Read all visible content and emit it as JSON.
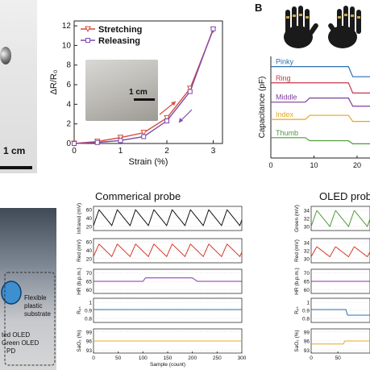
{
  "panel_b_label": "B",
  "left_scale_label": "1 cm",
  "inset_scale_label": "1 cm",
  "substrate_label": "Flexible\nplastic\nsubstrate",
  "oled_label_1": "ted OLED",
  "oled_label_2": "Green OLED",
  "oled_label_3": "PD",
  "chart_data": [
    {
      "type": "line",
      "xlabel": "Strain (%)",
      "ylabel": "ΔR/R₀",
      "xlim": [
        0,
        3.2
      ],
      "ylim": [
        0,
        12.5
      ],
      "xticks": [
        "0",
        "1",
        "2",
        "3"
      ],
      "yticks": [
        "0",
        "2",
        "4",
        "6",
        "8",
        "10",
        "12"
      ],
      "x": [
        0,
        0.5,
        1,
        1.5,
        2,
        2.5,
        3
      ],
      "series": [
        {
          "name": "Stretching",
          "color": "#d64c3c",
          "marker": "triangle-down",
          "values": [
            0,
            0.2,
            0.6,
            1.1,
            2.6,
            5.6,
            11.6
          ]
        },
        {
          "name": "Releasing",
          "color": "#7e4aa8",
          "marker": "square",
          "values": [
            0,
            0.1,
            0.3,
            0.7,
            2.3,
            5.3,
            11.7
          ]
        }
      ]
    },
    {
      "type": "line",
      "xlabel": "",
      "ylabel": "Capacitance (pF)",
      "xticks": [
        "0",
        "10",
        "20"
      ],
      "xlim": [
        0,
        23
      ],
      "series": [
        {
          "name": "Pinky",
          "color": "#2c6fb0",
          "values": [
            [
              0,
              0.9
            ],
            [
              18,
              0.9
            ],
            [
              19,
              0.8
            ],
            [
              23,
              0.8
            ]
          ]
        },
        {
          "name": "Ring",
          "color": "#c4384b",
          "values": [
            [
              0,
              0.74
            ],
            [
              18,
              0.74
            ],
            [
              19,
              0.64
            ],
            [
              23,
              0.64
            ]
          ]
        },
        {
          "name": "Middle",
          "color": "#7c3f9c",
          "values": [
            [
              0,
              0.55
            ],
            [
              8,
              0.55
            ],
            [
              9,
              0.59
            ],
            [
              18,
              0.59
            ],
            [
              19,
              0.51
            ],
            [
              23,
              0.51
            ]
          ]
        },
        {
          "name": "Index",
          "color": "#e4a820",
          "values": [
            [
              0,
              0.38
            ],
            [
              8,
              0.38
            ],
            [
              9,
              0.42
            ],
            [
              18,
              0.42
            ],
            [
              19,
              0.36
            ],
            [
              23,
              0.36
            ]
          ]
        },
        {
          "name": "Thumb",
          "color": "#4e9a3a",
          "values": [
            [
              0,
              0.2
            ],
            [
              8,
              0.2
            ],
            [
              9,
              0.17
            ],
            [
              18,
              0.17
            ],
            [
              19,
              0.14
            ],
            [
              23,
              0.14
            ]
          ]
        }
      ]
    },
    {
      "type": "line",
      "title": "Commerical probe",
      "xlabel": "Sample (count)",
      "xticks": [
        "0",
        "50",
        "100",
        "150",
        "200",
        "250",
        "300"
      ],
      "xlim": [
        0,
        300
      ],
      "subplots": [
        {
          "ylabel": "Infrared (mV)",
          "yticks": [
            "20",
            "40",
            "60"
          ],
          "ylim": [
            10,
            68
          ],
          "color": "#111111",
          "style": "sawtooth",
          "period": 37,
          "low": 22,
          "high": 60
        },
        {
          "ylabel": "Red (mV)",
          "yticks": [
            "20",
            "40",
            "60"
          ],
          "ylim": [
            10,
            68
          ],
          "color": "#d43a2a",
          "style": "sawtooth",
          "period": 37,
          "low": 25,
          "high": 55
        },
        {
          "ylabel": "HR (b.p.m.)",
          "yticks": [
            "60",
            "65",
            "70"
          ],
          "ylim": [
            58,
            72
          ],
          "color": "#8a2fb0",
          "style": "step",
          "points": [
            [
              0,
              65
            ],
            [
              100,
              65
            ],
            [
              105,
              67
            ],
            [
              200,
              67
            ],
            [
              210,
              65
            ],
            [
              300,
              65
            ]
          ]
        },
        {
          "ylabel": "Rₒₛ",
          "yticks": [
            "0.8",
            "0.9",
            "1"
          ],
          "ylim": [
            0.75,
            1.05
          ],
          "color": "#2c6fb0",
          "style": "step",
          "points": [
            [
              0,
              0.91
            ],
            [
              300,
              0.91
            ]
          ]
        },
        {
          "ylabel": "SaO₂ (%)",
          "yticks": [
            "93",
            "96",
            "99"
          ],
          "ylim": [
            92,
            100
          ],
          "color": "#e4a820",
          "style": "step",
          "points": [
            [
              0,
              96
            ],
            [
              300,
              96
            ]
          ]
        }
      ]
    },
    {
      "type": "line",
      "title": "OLED probe",
      "xticks": [
        "0",
        "50"
      ],
      "xlim": [
        0,
        110
      ],
      "subplots": [
        {
          "ylabel": "Green (mV)",
          "yticks": [
            "30",
            "32",
            "34"
          ],
          "ylim": [
            29,
            35
          ],
          "color": "#4e9a3a",
          "style": "sawtooth",
          "period": 35,
          "low": 30,
          "high": 34
        },
        {
          "ylabel": "Red (mV)",
          "yticks": [
            "30",
            "32",
            "34"
          ],
          "ylim": [
            29,
            35
          ],
          "color": "#d43a2a",
          "style": "sawtooth",
          "period": 35,
          "low": 30.5,
          "high": 33
        },
        {
          "ylabel": "HR (b.p.m.)",
          "yticks": [
            "60",
            "65",
            "70"
          ],
          "ylim": [
            58,
            72
          ],
          "color": "#8a2fb0",
          "style": "step",
          "points": [
            [
              0,
              65
            ],
            [
              110,
              65
            ]
          ]
        },
        {
          "ylabel": "Rₒₛ",
          "yticks": [
            "0.8",
            "0.9",
            "1"
          ],
          "ylim": [
            0.75,
            1.05
          ],
          "color": "#2c6fb0",
          "style": "step",
          "points": [
            [
              0,
              0.91
            ],
            [
              65,
              0.91
            ],
            [
              68,
              0.84
            ],
            [
              110,
              0.84
            ]
          ]
        },
        {
          "ylabel": "SaO₂ (%)",
          "yticks": [
            "93",
            "96",
            "99"
          ],
          "ylim": [
            92,
            100
          ],
          "color": "#e4a820",
          "style": "step",
          "points": [
            [
              0,
              95
            ],
            [
              60,
              95
            ],
            [
              63,
              96
            ],
            [
              110,
              96
            ]
          ]
        }
      ]
    }
  ]
}
